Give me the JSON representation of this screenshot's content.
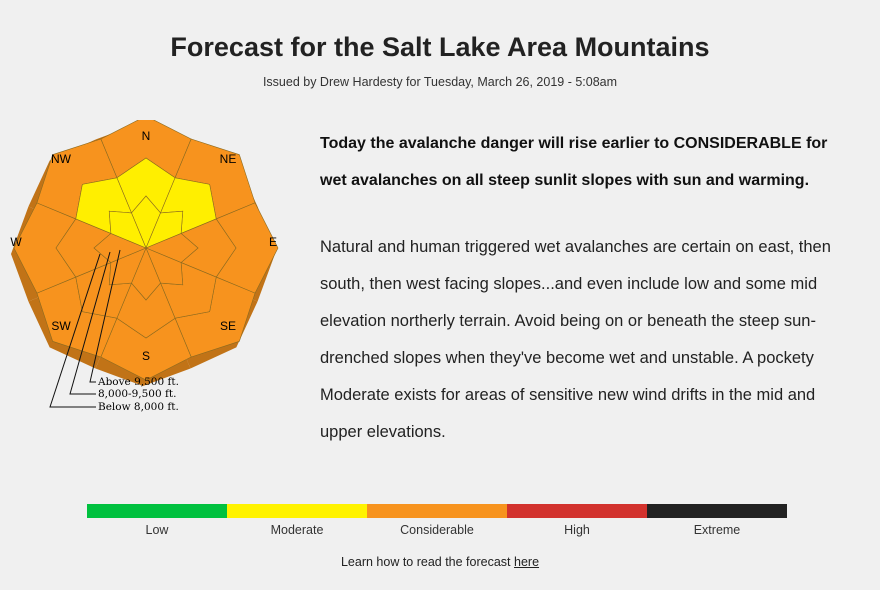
{
  "header": {
    "title": "Forecast for the Salt Lake Area Mountains",
    "subtitle": "Issued by Drew Hardesty for Tuesday, March 26, 2019 - 5:08am"
  },
  "rose": {
    "directions": [
      "N",
      "NE",
      "E",
      "SE",
      "S",
      "SW",
      "W",
      "NW"
    ],
    "bands": [
      {
        "label": "Above 9,500 ft.",
        "ratings": [
          "Moderate",
          "Moderate",
          "Considerable",
          "Considerable",
          "Considerable",
          "Considerable",
          "Considerable",
          "Moderate"
        ]
      },
      {
        "label": "8,000-9,500 ft.",
        "ratings": [
          "Moderate",
          "Moderate",
          "Considerable",
          "Considerable",
          "Considerable",
          "Considerable",
          "Considerable",
          "Moderate"
        ]
      },
      {
        "label": "Below 8,000 ft.",
        "ratings": [
          "Considerable",
          "Considerable",
          "Considerable",
          "Considerable",
          "Considerable",
          "Considerable",
          "Considerable",
          "Considerable"
        ]
      }
    ]
  },
  "bottom_line": {
    "headline": "Today the avalanche danger will rise earlier to CONSIDERABLE for wet avalanches on all steep sunlit slopes with sun and warming.",
    "body": "Natural and human triggered wet avalanches are certain on east, then south, then west facing slopes...and even include low and some mid elevation northerly terrain. Avoid being on or beneath the steep sun-drenched slopes when they've become wet and unstable. A pockety Moderate exists for areas of sensitive new wind drifts in the mid and upper elevations."
  },
  "danger_scale": {
    "levels": [
      {
        "label": "Low",
        "color": "#00c13f"
      },
      {
        "label": "Moderate",
        "color": "#fff300"
      },
      {
        "label": "Considerable",
        "color": "#f7931e"
      },
      {
        "label": "High",
        "color": "#d2322d"
      },
      {
        "label": "Extreme",
        "color": "#222222"
      }
    ]
  },
  "colors": {
    "Low": "#00c13f",
    "Moderate": "#ffef00",
    "Considerable": "#f7931e",
    "High": "#d2322d",
    "Extreme": "#222222"
  },
  "footer": {
    "learn_prefix": "Learn how to read the forecast ",
    "learn_link": "here"
  }
}
